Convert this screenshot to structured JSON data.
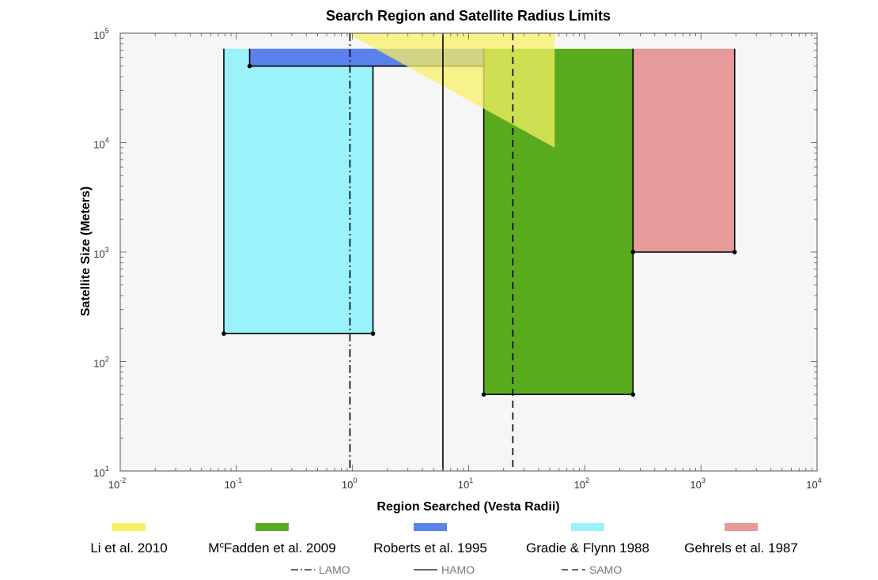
{
  "chart_data": {
    "type": "area",
    "title": "Search Region and Satellite Radius Limits",
    "xlabel": "Region Searched (Vesta Radii)",
    "ylabel": "Satellite Size (Meters)",
    "xscale": "log",
    "yscale": "log",
    "xlim": [
      0.01,
      10000
    ],
    "ylim": [
      10,
      100000
    ],
    "grid": false,
    "legend_position": "bottom",
    "x_ticks": [
      {
        "base": "10",
        "exp": "-2"
      },
      {
        "base": "10",
        "exp": "-1"
      },
      {
        "base": "10",
        "exp": "0"
      },
      {
        "base": "10",
        "exp": "1"
      },
      {
        "base": "10",
        "exp": "2"
      },
      {
        "base": "10",
        "exp": "3"
      },
      {
        "base": "10",
        "exp": "4"
      }
    ],
    "y_ticks": [
      {
        "base": "10",
        "exp": "1"
      },
      {
        "base": "10",
        "exp": "2"
      },
      {
        "base": "10",
        "exp": "3"
      },
      {
        "base": "10",
        "exp": "4"
      },
      {
        "base": "10",
        "exp": "5"
      }
    ],
    "series": [
      {
        "name": "Li et al. 2010",
        "color": "#f7f064",
        "opacity": 0.75,
        "shape": "triangle",
        "vertices": [
          [
            0.9,
            100000
          ],
          [
            55,
            100000
          ],
          [
            55,
            9000
          ]
        ]
      },
      {
        "name": "McFadden et al. 2009",
        "color": "#5aaa1e",
        "opacity": 1,
        "shape": "rect",
        "x": [
          13.5,
          260
        ],
        "y": [
          50,
          72000
        ]
      },
      {
        "name": "Roberts et al. 1995",
        "color": "#5b82ec",
        "opacity": 1,
        "shape": "rect",
        "x": [
          0.13,
          14
        ],
        "y": [
          50000,
          72000
        ]
      },
      {
        "name": "Gradie & Flynn 1988",
        "color": "#9af3fa",
        "opacity": 1,
        "shape": "rect",
        "x": [
          0.078,
          1.5
        ],
        "y": [
          180,
          72000
        ]
      },
      {
        "name": "Gehrels et al. 1987",
        "color": "#e79a9a",
        "opacity": 1,
        "shape": "rect",
        "x": [
          260,
          1950
        ],
        "y": [
          1000,
          72000
        ]
      }
    ],
    "reference_lines": [
      {
        "name": "LAMO",
        "x": 0.95,
        "style": "dash-dot"
      },
      {
        "name": "HAMO",
        "x": 6,
        "style": "solid"
      },
      {
        "name": "SAMO",
        "x": 24,
        "style": "dashed"
      }
    ],
    "legend": [
      {
        "prefix": "Li et al. 2010",
        "sup": "",
        "suffix": "",
        "color": "#f7f064"
      },
      {
        "prefix": "M",
        "sup": "c",
        "suffix": "Fadden et al. 2009",
        "color": "#5aaa1e"
      },
      {
        "prefix": "Roberts et al. 1995",
        "sup": "",
        "suffix": "",
        "color": "#5b82ec"
      },
      {
        "prefix": "Gradie & Flynn 1988",
        "sup": "",
        "suffix": "",
        "color": "#9af3fa"
      },
      {
        "prefix": "Gehrels et al. 1987",
        "sup": "",
        "suffix": "",
        "color": "#e79a9a"
      }
    ],
    "colors": {
      "plot_background": "#f6f6f6",
      "frame": "#555555",
      "line": "#000000"
    }
  }
}
